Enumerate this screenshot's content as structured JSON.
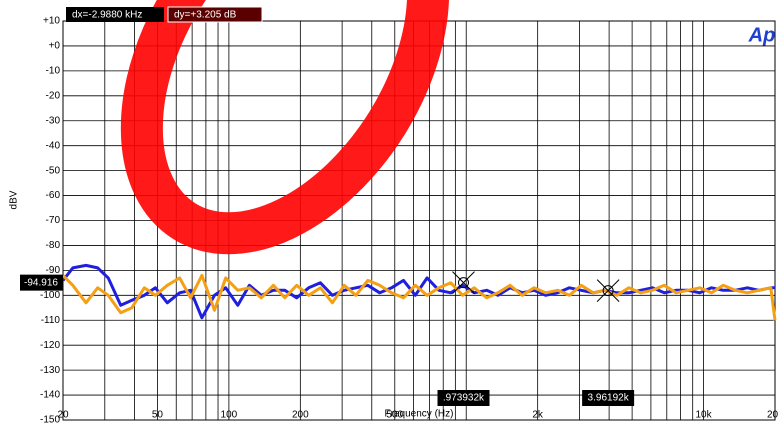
{
  "chart_data": {
    "type": "line",
    "ylabel": "dBV",
    "xlabel": "Frequency (Hz)",
    "logo": "Ap",
    "dx_label": "dx=-2.9880 kHz",
    "dy_label": "dy=+3.205  dB",
    "xlim": [
      20,
      20000
    ],
    "xlog": true,
    "xticks": [
      20,
      50,
      100,
      200,
      500,
      {
        "value": 2000,
        "label": "2k"
      },
      {
        "value": 10000,
        "label": "10k"
      },
      {
        "value": 20000,
        "label": "20k"
      }
    ],
    "xgrid": [
      30,
      40,
      60,
      70,
      80,
      90,
      300,
      400,
      600,
      700,
      800,
      900,
      1000,
      3000,
      4000,
      5000,
      6000,
      7000,
      8000,
      9000
    ],
    "ylim": [
      -150,
      10
    ],
    "yticks": [
      {
        "value": 10,
        "label": "+10"
      },
      {
        "value": 0,
        "label": "+0"
      },
      -10,
      -20,
      -30,
      -40,
      -50,
      -60,
      -70,
      -80,
      -90,
      -100,
      -110,
      -120,
      -130,
      -140,
      -150
    ],
    "grid": true,
    "x": [
      20,
      22,
      25,
      28,
      31,
      35,
      39,
      44,
      49,
      55,
      62,
      69,
      77,
      87,
      97,
      109,
      122,
      137,
      154,
      172,
      193,
      217,
      243,
      273,
      306,
      343,
      385,
      432,
      485,
      544,
      610,
      684,
      767,
      861,
      966,
      1080,
      1220,
      1360,
      1530,
      1720,
      1930,
      2160,
      2430,
      2720,
      3050,
      3430,
      3840,
      4310,
      4840,
      5430,
      6090,
      6830,
      7660,
      8600,
      9640,
      10800,
      12100,
      13600,
      15300,
      17100,
      19200,
      20000
    ],
    "series": [
      {
        "color": "#1f1fe0",
        "values": [
          -94,
          -89,
          -88,
          -89,
          -93,
          -104,
          -102,
          -100,
          -97,
          -103,
          -99,
          -98,
          -109,
          -100,
          -97,
          -104,
          -96,
          -100,
          -98,
          -98,
          -101,
          -97,
          -95,
          -100,
          -98,
          -97,
          -96,
          -99,
          -97,
          -94,
          -100,
          -93,
          -98,
          -99,
          -96,
          -99,
          -98,
          -100,
          -97,
          -99,
          -98,
          -100,
          -99,
          -97,
          -98,
          -99,
          -98,
          -99,
          -99,
          -98,
          -97,
          -99,
          -98,
          -98,
          -99,
          -97,
          -98,
          -98,
          -97,
          -98,
          -97,
          -97
        ]
      },
      {
        "color": "#f5a014",
        "values": [
          -92,
          -96,
          -103,
          -97,
          -100,
          -107,
          -105,
          -97,
          -100,
          -96,
          -93,
          -101,
          -92,
          -106,
          -93,
          -98,
          -97,
          -101,
          -96,
          -101,
          -96,
          -100,
          -97,
          -103,
          -96,
          -100,
          -94,
          -96,
          -99,
          -101,
          -96,
          -100,
          -97,
          -95,
          -100,
          -97,
          -101,
          -99,
          -96,
          -100,
          -97,
          -99,
          -98,
          -100,
          -96,
          -99,
          -98,
          -100,
          -97,
          -99,
          -98,
          -96,
          -99,
          -98,
          -97,
          -99,
          -96,
          -98,
          -99,
          -98,
          -97,
          -110
        ]
      }
    ],
    "cursors": [
      {
        "x": 973.932,
        "label": ".973932k",
        "y": -94.916
      },
      {
        "x": 3961.92,
        "label": "3.96192k",
        "y": -98.121
      }
    ]
  }
}
